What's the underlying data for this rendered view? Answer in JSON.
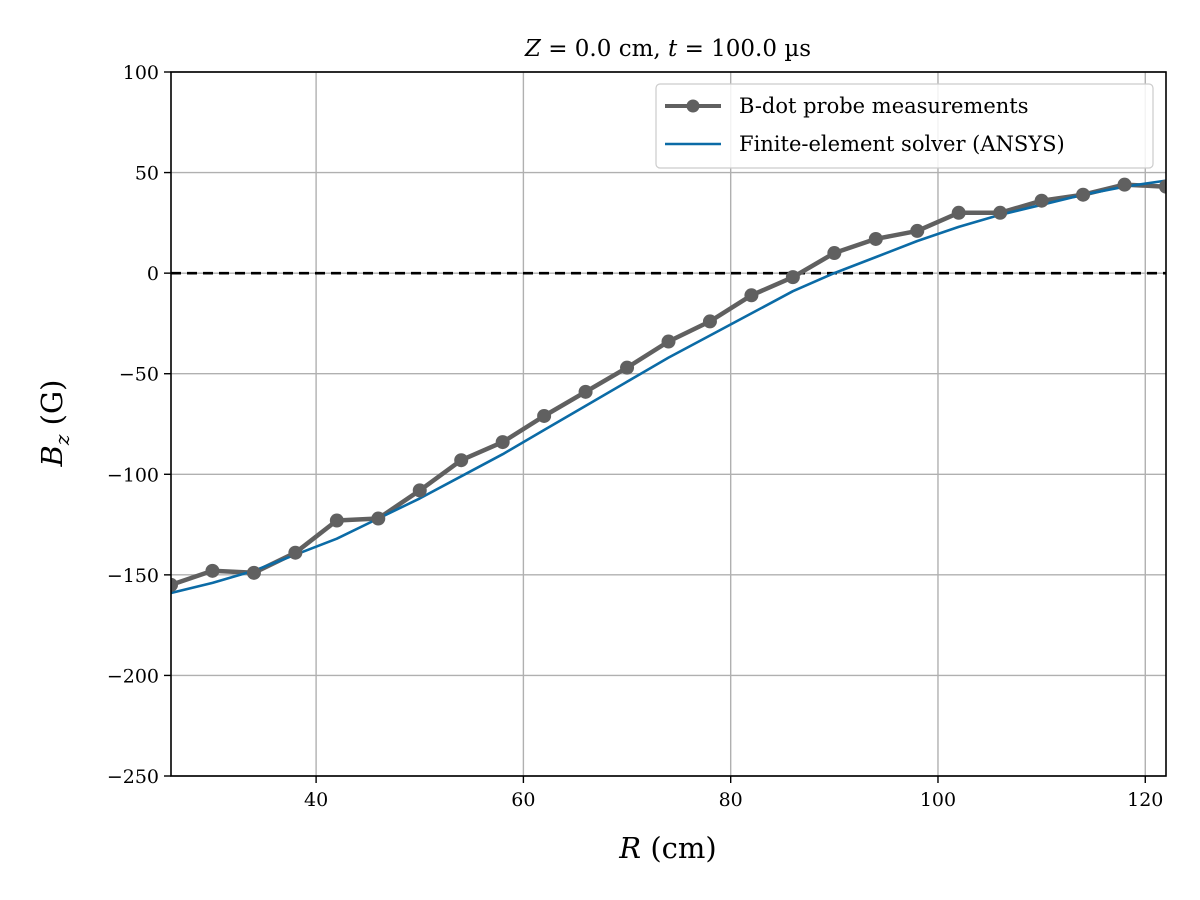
{
  "chart_data": {
    "type": "line",
    "title": {
      "z_symbol": "Z",
      "z_text": " = 0.0 cm, ",
      "t_symbol": "t",
      "t_text": " = 100.0 µs"
    },
    "xlabel": {
      "symbol": "R",
      "unit": " (cm)"
    },
    "ylabel": {
      "symbol": "B",
      "subscript": "z",
      "unit": " (G)"
    },
    "xlim": [
      26,
      122
    ],
    "ylim": [
      -250,
      100
    ],
    "xticks": [
      40,
      60,
      80,
      100,
      120
    ],
    "yticks": [
      100,
      50,
      0,
      -50,
      -100,
      -150,
      -200,
      -250
    ],
    "xtick_labels": [
      "40",
      "60",
      "80",
      "100",
      "120"
    ],
    "ytick_labels": [
      "100",
      "50",
      "0",
      "−50",
      "−100",
      "−150",
      "−200",
      "−250"
    ],
    "grid": true,
    "reference_line": {
      "y": 0,
      "style": "dashed",
      "color": "#000000"
    },
    "legend_position": "top-right",
    "series": [
      {
        "name": "B-dot probe measurements",
        "color": "#606060",
        "marker": "circle",
        "x": [
          26,
          30,
          34,
          38,
          42,
          46,
          50,
          54,
          58,
          62,
          66,
          70,
          74,
          78,
          82,
          86,
          90,
          94,
          98,
          102,
          106,
          110,
          114,
          118,
          122
        ],
        "y": [
          -155,
          -148,
          -149,
          -139,
          -123,
          -122,
          -108,
          -93,
          -84,
          -71,
          -59,
          -47,
          -34,
          -24,
          -11,
          -2,
          10,
          17,
          21,
          30,
          30,
          36,
          39,
          44,
          43
        ]
      },
      {
        "name": "Finite-element solver (ANSYS)",
        "color": "#0b6ba6",
        "marker": "none",
        "x": [
          26,
          30,
          34,
          38,
          42,
          46,
          50,
          54,
          58,
          62,
          66,
          70,
          74,
          78,
          82,
          86,
          90,
          94,
          98,
          102,
          106,
          110,
          114,
          118,
          122
        ],
        "y": [
          -159,
          -154,
          -148,
          -140,
          -132,
          -122,
          -112,
          -101,
          -90,
          -78,
          -66,
          -54,
          -42,
          -31,
          -20,
          -9,
          0,
          8,
          16,
          23,
          29,
          34,
          39,
          43,
          46
        ]
      }
    ]
  }
}
